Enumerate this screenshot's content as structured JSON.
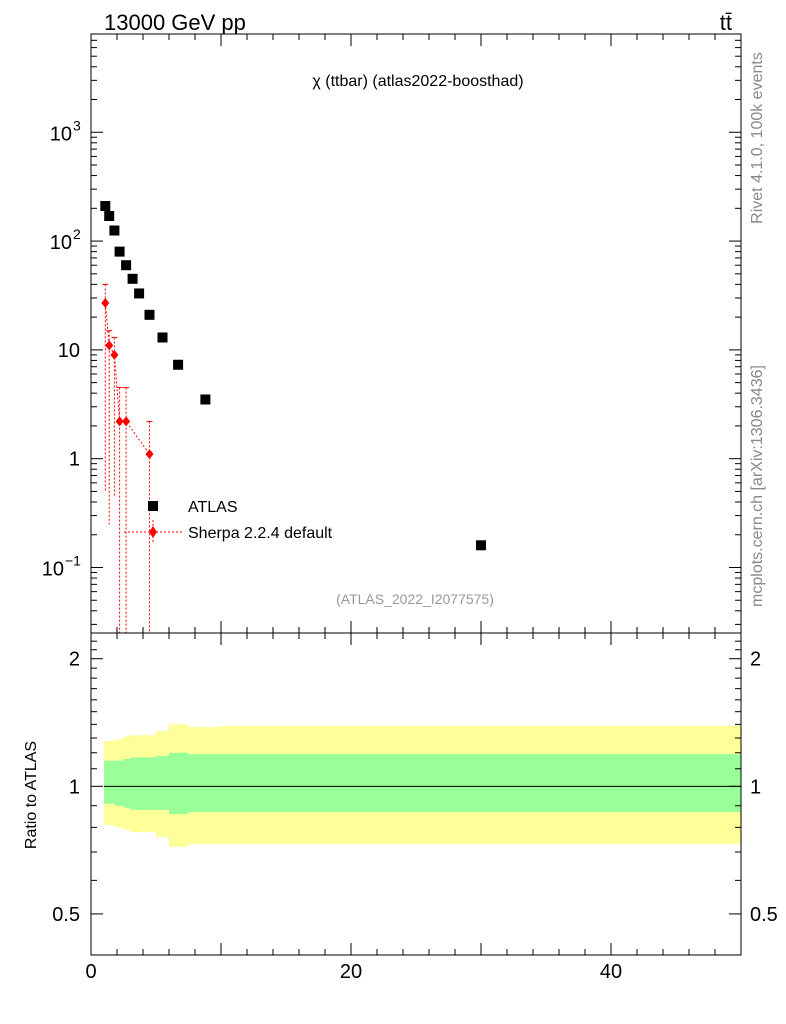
{
  "header": {
    "energy_label": "13000 GeV pp",
    "process_label": "tt̄",
    "rivet_label": "Rivet 4.1.0,  100k events",
    "site_label": "mcplots.cern.ch [arXiv:1306.3436]"
  },
  "chart_data": [
    {
      "type": "scatter",
      "title": "χ (ttbar) (atlas2022-boosthad)",
      "analysis_tag": "(ATLAS_2022_I2077575)",
      "xlabel": "",
      "ylabel": "",
      "yscale": "log",
      "xlim": [
        0,
        50
      ],
      "ylim": [
        0.025,
        8000
      ],
      "y_ticks": [
        {
          "value": 0.1,
          "base": "10",
          "exp": "−1"
        },
        {
          "value": 1,
          "label": "1"
        },
        {
          "value": 10,
          "label": "10"
        },
        {
          "value": 100,
          "base": "10",
          "exp": "2"
        },
        {
          "value": 1000,
          "base": "10",
          "exp": "3"
        }
      ],
      "legend_position": "center-left",
      "series": [
        {
          "name": "ATLAS",
          "color": "#000000",
          "marker": "square",
          "x": [
            1.1,
            1.4,
            1.8,
            2.2,
            2.7,
            3.2,
            3.7,
            4.5,
            5.5,
            6.7,
            8.8,
            30.0
          ],
          "values": [
            210,
            170,
            125,
            80,
            60,
            45,
            33,
            21,
            13,
            7.3,
            3.5,
            0.16
          ]
        },
        {
          "name": "Sherpa 2.2.4 default",
          "color": "#ff0000",
          "marker": "diamond",
          "line": "dotted",
          "x": [
            1.1,
            1.4,
            1.8,
            2.2,
            2.7,
            4.5
          ],
          "values": [
            27,
            11,
            9,
            2.2,
            2.2,
            1.1
          ],
          "err_low": [
            0.5,
            0.25,
            0.45,
            0.0,
            0.0,
            0.0
          ],
          "err_high": [
            40,
            15,
            13,
            4.5,
            4.5,
            2.2
          ]
        }
      ]
    },
    {
      "type": "area",
      "ylabel": "Ratio to ATLAS",
      "xlim": [
        0,
        50
      ],
      "ylim": [
        0.4,
        2.3
      ],
      "x_ticks": [
        "0",
        "20",
        "40"
      ],
      "x_tick_values": [
        0,
        20,
        40
      ],
      "y_ticks": [
        "0.5",
        "1",
        "2"
      ],
      "y_tick_values": [
        0.5,
        1,
        2
      ],
      "reference_line": 1,
      "bands": [
        {
          "name": "total uncertainty",
          "color": "#ffff99",
          "edges": [
            1.0,
            1.8,
            2.5,
            3.0,
            5.0,
            6.0,
            7.5,
            10.0,
            50.0
          ],
          "low": [
            0.81,
            0.8,
            0.79,
            0.78,
            0.76,
            0.72,
            0.73,
            0.73
          ],
          "high": [
            1.28,
            1.29,
            1.31,
            1.32,
            1.35,
            1.4,
            1.38,
            1.39
          ]
        },
        {
          "name": "statistical uncertainty",
          "color": "#99ff99",
          "edges": [
            1.0,
            1.8,
            2.5,
            3.0,
            5.0,
            6.0,
            7.5,
            10.0,
            50.0
          ],
          "low": [
            0.91,
            0.9,
            0.89,
            0.88,
            0.88,
            0.86,
            0.87,
            0.87
          ],
          "high": [
            1.15,
            1.15,
            1.16,
            1.17,
            1.18,
            1.2,
            1.19,
            1.19
          ]
        }
      ]
    }
  ]
}
